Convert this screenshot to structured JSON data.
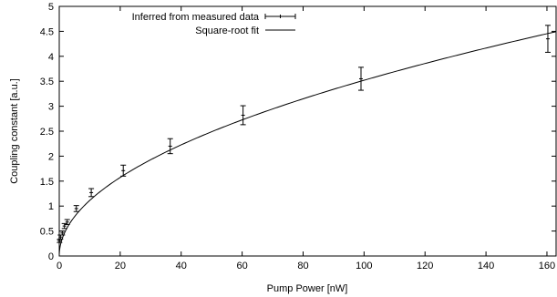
{
  "chart_data": {
    "type": "scatter",
    "xlabel": "Pump Power [nW]",
    "ylabel": "Coupling constant [a.u.]",
    "xlim": [
      0,
      163
    ],
    "ylim": [
      0,
      5
    ],
    "xticks": [
      0,
      20,
      40,
      60,
      80,
      100,
      120,
      140,
      160
    ],
    "yticks": [
      0,
      0.5,
      1,
      1.5,
      2,
      2.5,
      3,
      3.5,
      4,
      4.5,
      5
    ],
    "legend_position": "top-left",
    "grid": false,
    "series": [
      {
        "name": "Inferred from measured data",
        "kind": "points_with_errorbars",
        "color": "#000000",
        "x": [
          0.1,
          0.4,
          1.0,
          1.7,
          2.6,
          5.6,
          10.5,
          21.0,
          36.4,
          60.3,
          99.0,
          160.3
        ],
        "y": [
          0.3,
          0.38,
          0.46,
          0.6,
          0.68,
          0.95,
          1.27,
          1.71,
          2.2,
          2.82,
          3.55,
          4.35
        ],
        "yerr": [
          0.03,
          0.04,
          0.04,
          0.05,
          0.05,
          0.06,
          0.08,
          0.11,
          0.15,
          0.19,
          0.23,
          0.27
        ]
      },
      {
        "name": "Square-root fit",
        "kind": "line",
        "color": "#000000",
        "function": "sqrt",
        "a": 0.352
      }
    ]
  }
}
